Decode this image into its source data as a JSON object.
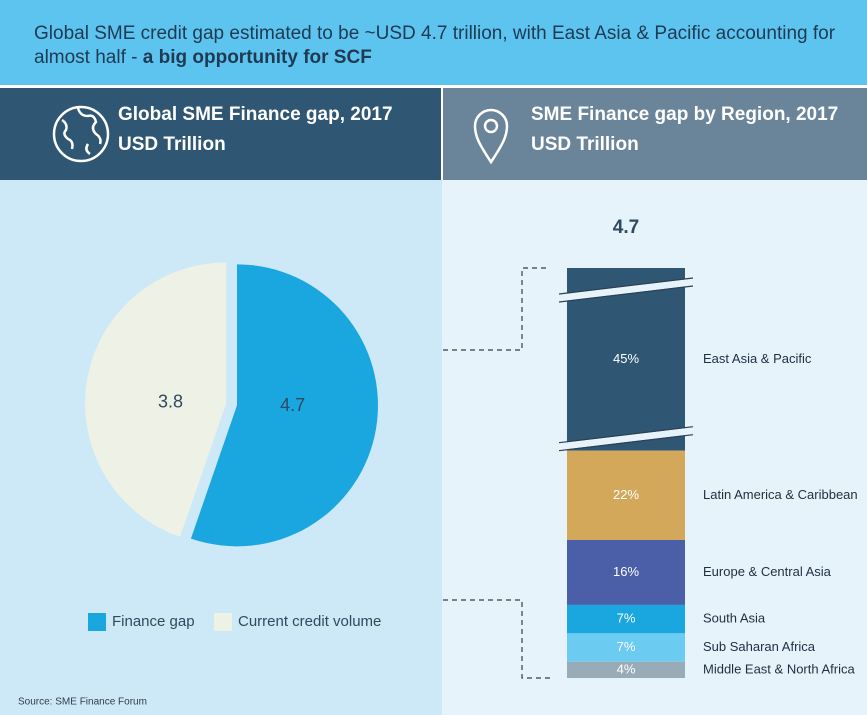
{
  "title": "Global SME credit gap estimated to be ~USD 4.7 trillion, with East Asia & Pacific accounting for almost half - ",
  "title_emphasis": "a big opportunity for SCF",
  "source": "Source: SME Finance Forum",
  "chart_data": [
    {
      "type": "pie",
      "title": "Global SME Finance gap, 2017",
      "subtitle": "USD Trillion",
      "categories": [
        "Finance gap",
        "Current credit volume"
      ],
      "values": [
        4.7,
        3.8
      ],
      "colors": [
        "#1aa7e0",
        "#eef2e6"
      ],
      "legend": "bottom"
    },
    {
      "type": "stacked-bar",
      "title": "SME Finance gap by Region, 2017",
      "subtitle": "USD Trillion",
      "total": 4.7,
      "categories": [
        "East Asia & Pacific",
        "Latin America & Caribbean",
        "Europe & Central Asia",
        "South Asia",
        "Sub Saharan Africa",
        "Middle East & North Africa"
      ],
      "values": [
        45,
        22,
        16,
        7,
        7,
        4
      ],
      "value_labels": [
        "45%",
        "22%",
        "16%",
        "7%",
        "7%",
        "4%"
      ],
      "colors": [
        "#2f5673",
        "#d4a85a",
        "#4a5fa8",
        "#1aa7e0",
        "#6ccbf0",
        "#9aabb8"
      ]
    }
  ]
}
